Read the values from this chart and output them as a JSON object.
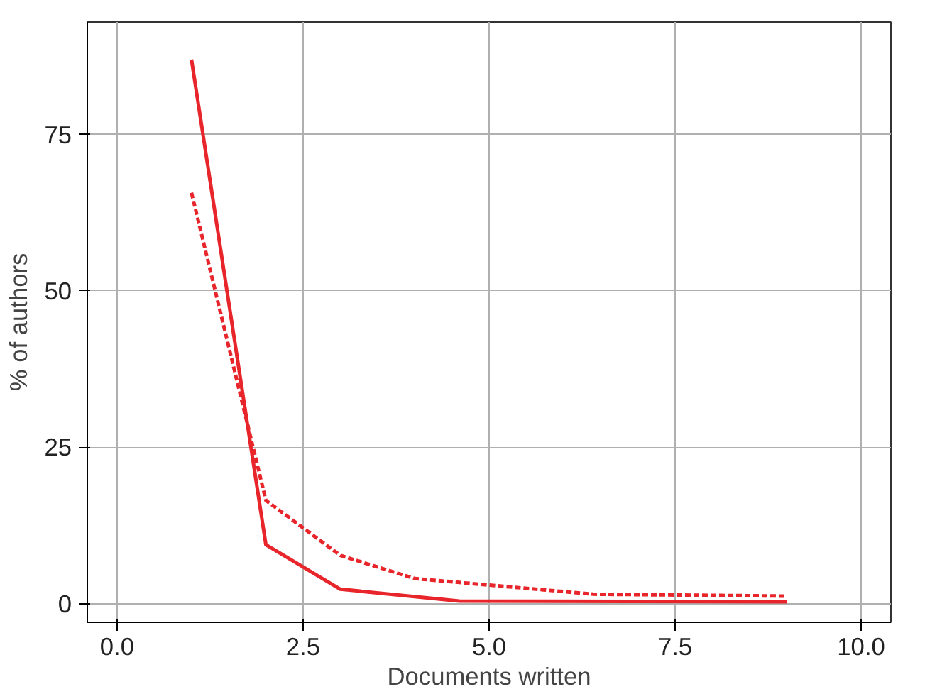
{
  "chart_data": {
    "type": "line",
    "xlabel": "Documents written",
    "ylabel": "% of authors",
    "series": [
      {
        "color": "#e8252a",
        "x": [
          1,
          2,
          3,
          4.6,
          9
        ],
        "values": [
          87,
          9.4,
          2.3,
          0.4,
          0.3
        ],
        "line_style": "solid"
      },
      {
        "color": "#e8252a",
        "x": [
          1,
          2,
          3,
          4,
          6.4,
          9
        ],
        "values": [
          65.7,
          16.5,
          7.7,
          4,
          1.5,
          1.2
        ],
        "line_style": "dashed"
      }
    ],
    "xlim": [
      -0.4,
      10.4
    ],
    "ylim": [
      -3,
      93
    ],
    "xticks": [
      {
        "value": 0,
        "label": "0.0"
      },
      {
        "value": 2.5,
        "label": "2.5"
      },
      {
        "value": 5,
        "label": "5.0"
      },
      {
        "value": 7.5,
        "label": "7.5"
      },
      {
        "value": 10,
        "label": "10.0"
      }
    ],
    "yticks": [
      0,
      25,
      50,
      75
    ],
    "grid": true,
    "marker": "none"
  }
}
